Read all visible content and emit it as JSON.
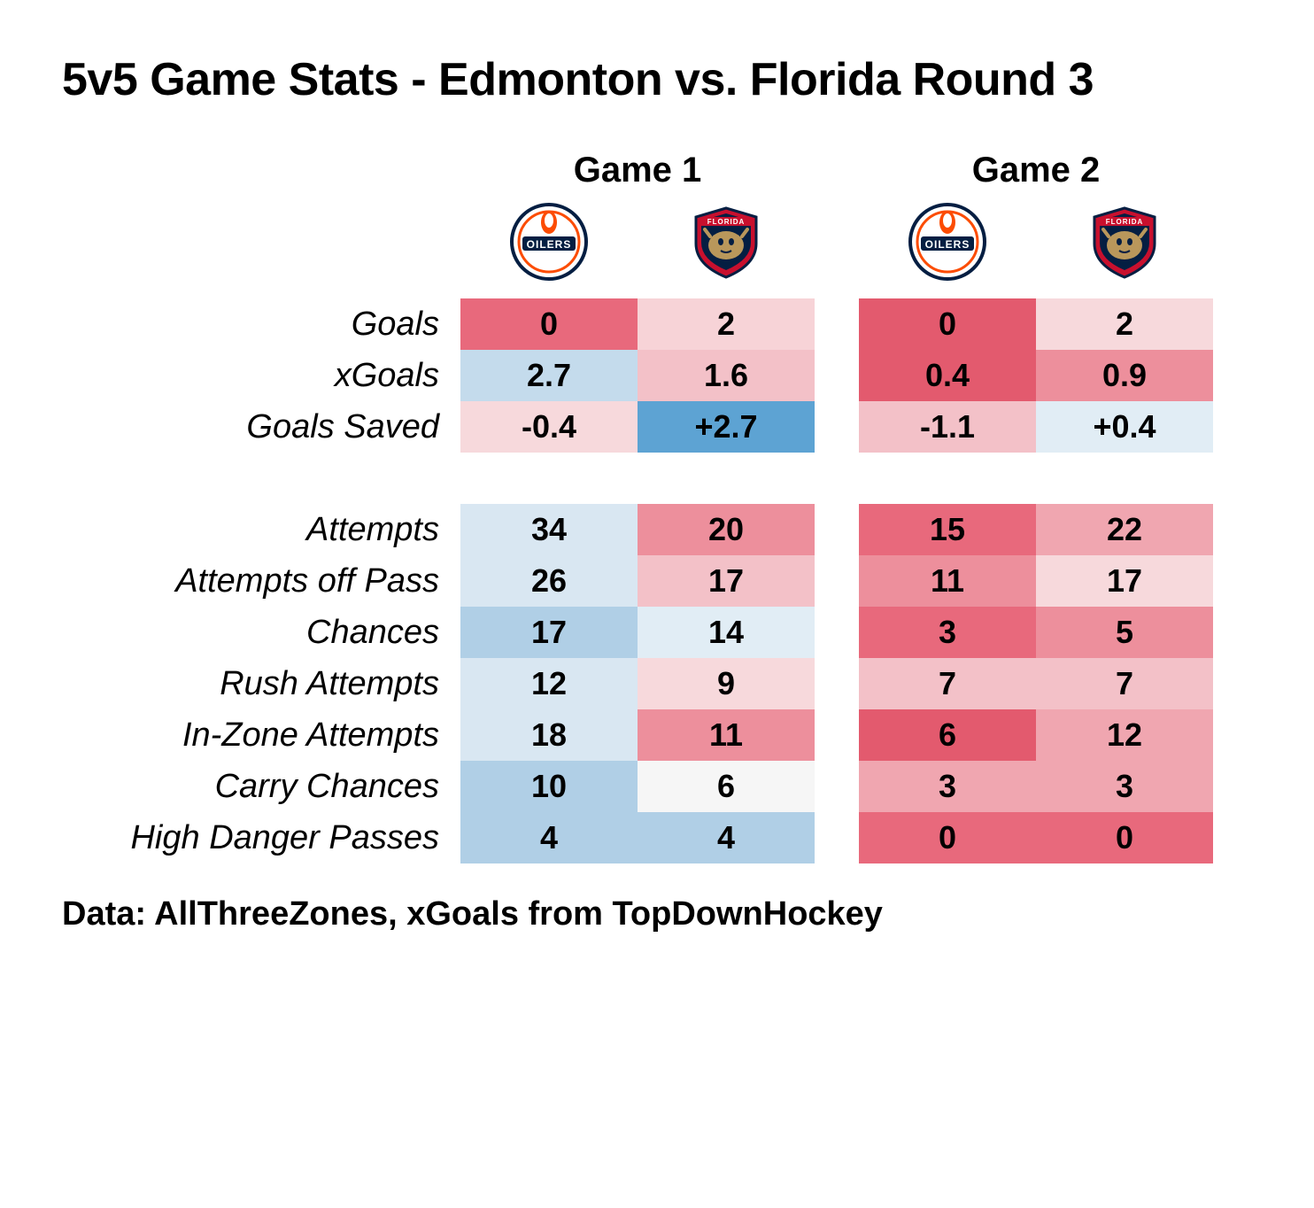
{
  "title": "5v5 Game Stats - Edmonton vs. Florida Round 3",
  "footer": "Data: AllThreeZones, xGoals from TopDownHockey",
  "games": [
    "Game 1",
    "Game 2"
  ],
  "teams": [
    "Edmonton Oilers",
    "Florida Panthers"
  ],
  "groups": [
    {
      "rows": [
        {
          "label": "Goals",
          "cells": [
            {
              "v": "0",
              "c": "#e8697c"
            },
            {
              "v": "2",
              "c": "#f7d3d7"
            },
            {
              "v": "0",
              "c": "#e35a6e"
            },
            {
              "v": "2",
              "c": "#f7d9dc"
            }
          ]
        },
        {
          "label": "xGoals",
          "cells": [
            {
              "v": "2.7",
              "c": "#c4dbec"
            },
            {
              "v": "1.6",
              "c": "#f3c1c8"
            },
            {
              "v": "0.4",
              "c": "#e35a6e"
            },
            {
              "v": "0.9",
              "c": "#ed8f9c"
            }
          ]
        },
        {
          "label": "Goals Saved",
          "cells": [
            {
              "v": "-0.4",
              "c": "#f7d9dc"
            },
            {
              "v": "+2.7",
              "c": "#5da3d3"
            },
            {
              "v": "-1.1",
              "c": "#f3c1c8"
            },
            {
              "v": "+0.4",
              "c": "#e1edf5"
            }
          ]
        }
      ]
    },
    {
      "rows": [
        {
          "label": "Attempts",
          "cells": [
            {
              "v": "34",
              "c": "#d9e7f2"
            },
            {
              "v": "20",
              "c": "#ed8f9c"
            },
            {
              "v": "15",
              "c": "#e8697c"
            },
            {
              "v": "22",
              "c": "#f0a6b0"
            }
          ]
        },
        {
          "label": "Attempts off Pass",
          "cells": [
            {
              "v": "26",
              "c": "#d9e7f2"
            },
            {
              "v": "17",
              "c": "#f3c1c8"
            },
            {
              "v": "11",
              "c": "#ed8f9c"
            },
            {
              "v": "17",
              "c": "#f7d9dc"
            }
          ]
        },
        {
          "label": "Chances",
          "cells": [
            {
              "v": "17",
              "c": "#b0cfe6"
            },
            {
              "v": "14",
              "c": "#e1edf5"
            },
            {
              "v": "3",
              "c": "#e8697c"
            },
            {
              "v": "5",
              "c": "#ed8f9c"
            }
          ]
        },
        {
          "label": "Rush Attempts",
          "cells": [
            {
              "v": "12",
              "c": "#d9e7f2"
            },
            {
              "v": "9",
              "c": "#f7d9dc"
            },
            {
              "v": "7",
              "c": "#f3c1c8"
            },
            {
              "v": "7",
              "c": "#f3c1c8"
            }
          ]
        },
        {
          "label": "In-Zone Attempts",
          "cells": [
            {
              "v": "18",
              "c": "#d9e7f2"
            },
            {
              "v": "11",
              "c": "#ed8f9c"
            },
            {
              "v": "6",
              "c": "#e35a6e"
            },
            {
              "v": "12",
              "c": "#f0a6b0"
            }
          ]
        },
        {
          "label": "Carry Chances",
          "cells": [
            {
              "v": "10",
              "c": "#b0cfe6"
            },
            {
              "v": "6",
              "c": "#f6f6f6"
            },
            {
              "v": "3",
              "c": "#f0a6b0"
            },
            {
              "v": "3",
              "c": "#f0a6b0"
            }
          ]
        },
        {
          "label": "High Danger Passes",
          "cells": [
            {
              "v": "4",
              "c": "#b0cfe6"
            },
            {
              "v": "4",
              "c": "#b0cfe6"
            },
            {
              "v": "0",
              "c": "#e8697c"
            },
            {
              "v": "0",
              "c": "#e8697c"
            }
          ]
        }
      ]
    }
  ],
  "logos": {
    "oilers_svg": "oilers",
    "panthers_svg": "panthers"
  },
  "colors": {
    "oilers_navy": "#041e42",
    "oilers_orange": "#fc4c02",
    "panthers_red": "#c8102e",
    "panthers_navy": "#041e42",
    "panthers_tan": "#b9975b"
  }
}
